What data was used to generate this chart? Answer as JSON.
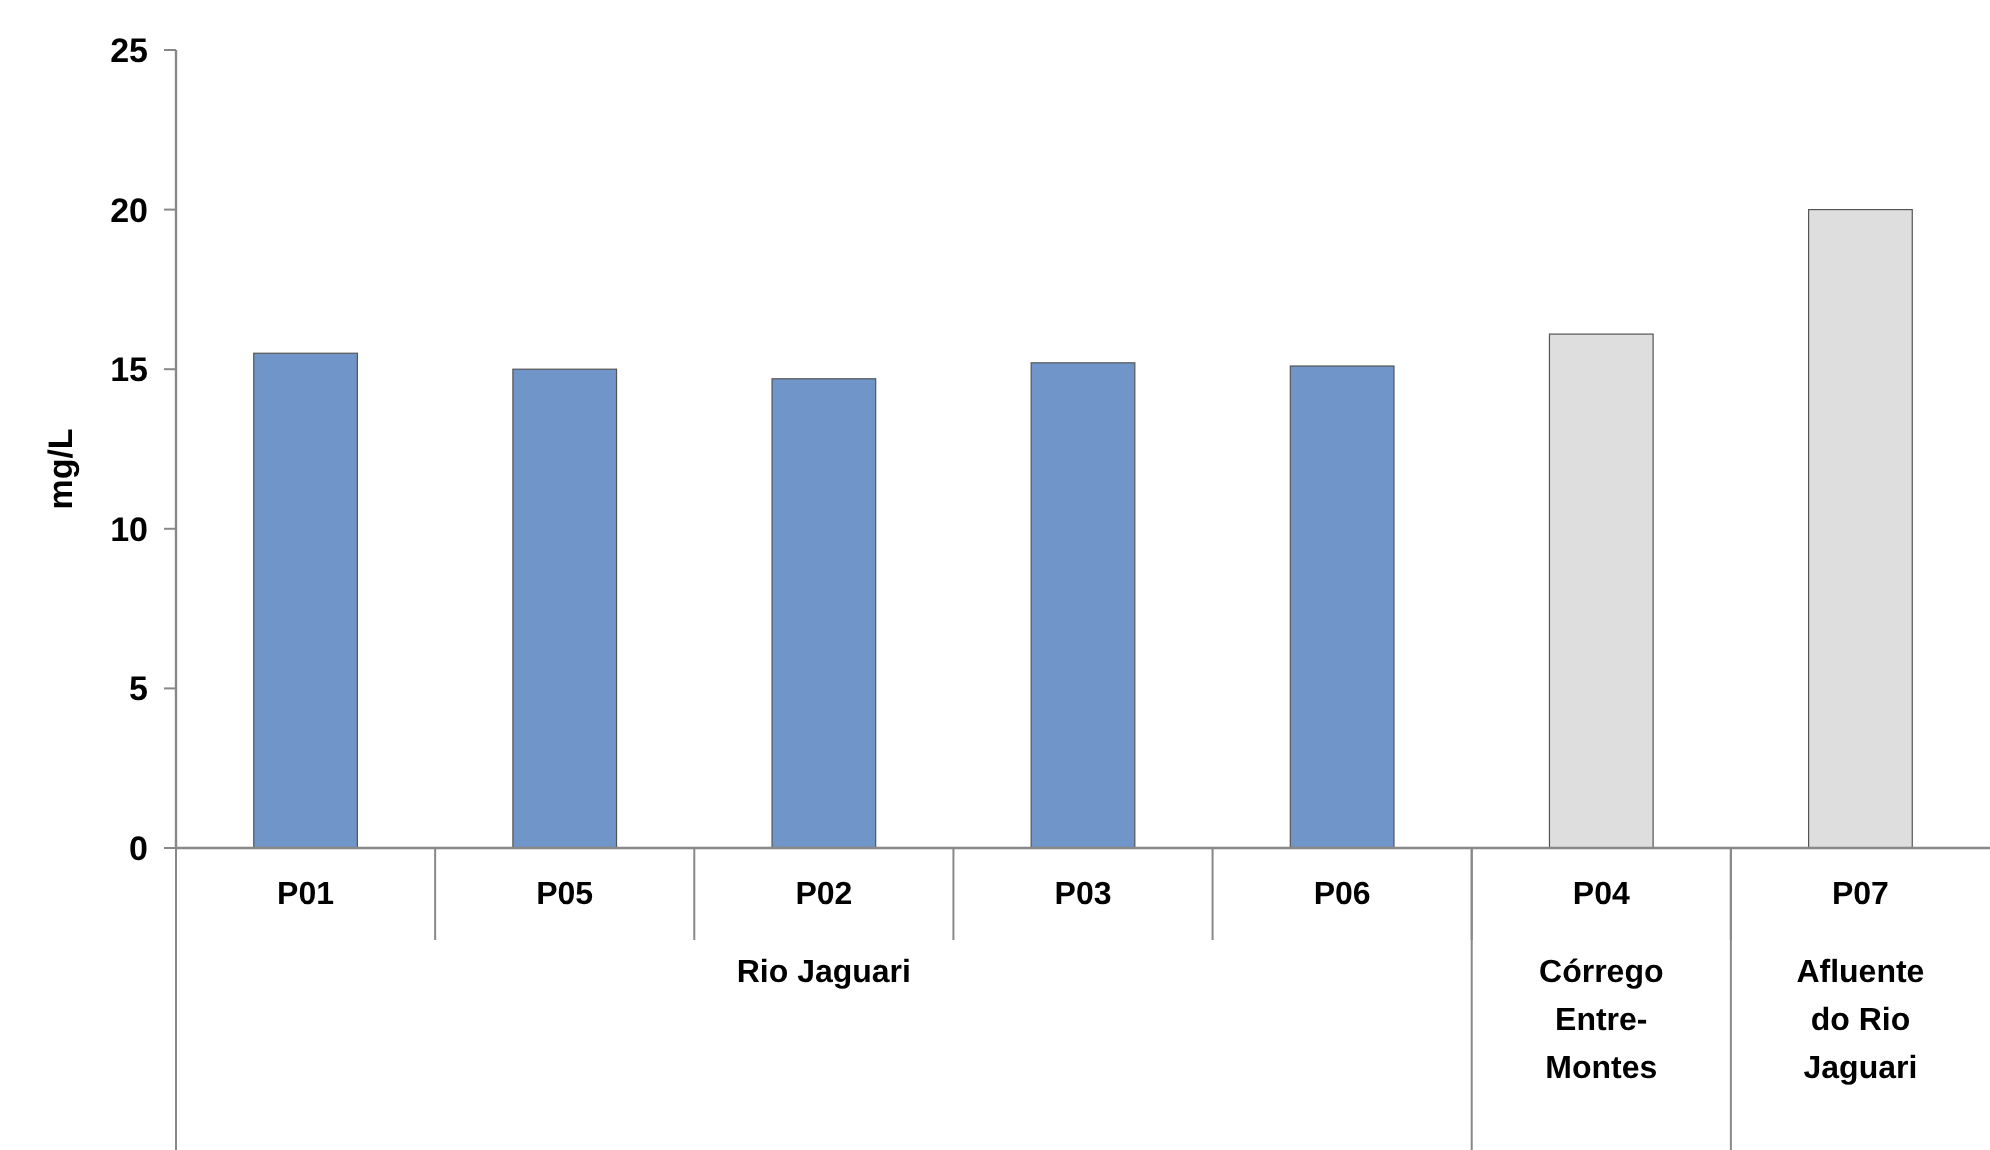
{
  "chart_data": {
    "type": "bar",
    "ylabel": "mg/L",
    "categories": [
      "P01",
      "P05",
      "P02",
      "P03",
      "P06",
      "P04",
      "P07"
    ],
    "values": [
      15.5,
      15.0,
      14.7,
      15.2,
      15.1,
      16.1,
      20.0
    ],
    "colors": [
      "#6f95c9",
      "#6f95c9",
      "#6f95c9",
      "#6f95c9",
      "#6f95c9",
      "#dedede",
      "#dedede"
    ],
    "ylim": [
      0,
      25
    ],
    "yticks": [
      0,
      5,
      10,
      15,
      20,
      25
    ],
    "annotations": [
      "Rio Jaguari",
      "Córrego Entre-Montes",
      "Afluente do Rio Jaguari"
    ]
  }
}
